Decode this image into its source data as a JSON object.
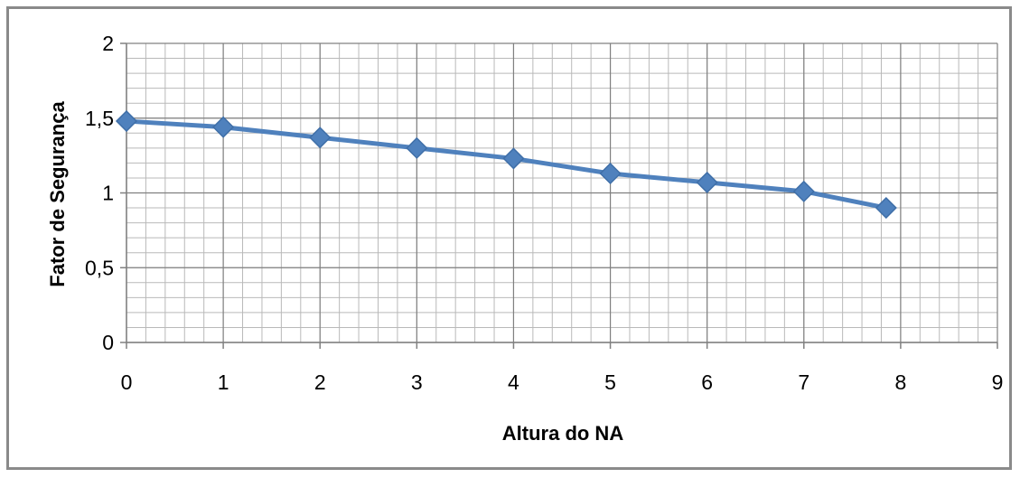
{
  "chart_data": {
    "type": "line",
    "title": "",
    "xlabel": "Altura do NA",
    "ylabel": "Fator de Segurança",
    "xlim": [
      0,
      9
    ],
    "ylim": [
      0,
      2
    ],
    "x_ticks": [
      "0",
      "1",
      "2",
      "3",
      "4",
      "5",
      "6",
      "7",
      "8",
      "9"
    ],
    "y_ticks": [
      "0",
      "0,5",
      "1",
      "1,5",
      "2"
    ],
    "grid": true,
    "legend": "none",
    "series": [
      {
        "x": [
          0,
          1,
          2,
          3,
          4,
          5,
          6,
          7,
          7.85
        ],
        "y": [
          1.48,
          1.44,
          1.37,
          1.3,
          1.23,
          1.13,
          1.07,
          1.01,
          0.9
        ],
        "marker": "diamond",
        "color": "#4F81BD"
      }
    ]
  }
}
